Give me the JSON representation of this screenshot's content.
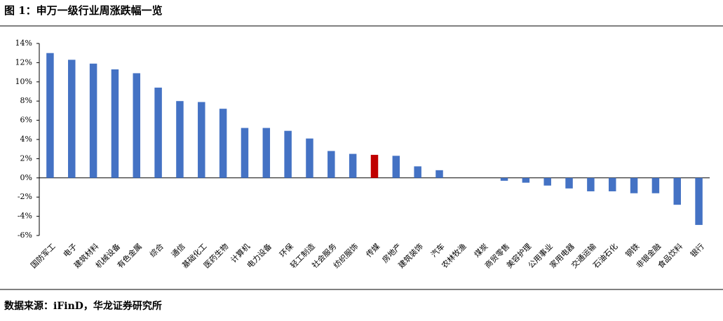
{
  "chart_data": {
    "type": "bar",
    "title": "图 1：申万一级行业周涨跌幅一览",
    "source": "数据来源：iFinD，华龙证券研究所",
    "categories": [
      "国防军工",
      "电子",
      "建筑材料",
      "机械设备",
      "有色金属",
      "综合",
      "通信",
      "基础化工",
      "医药生物",
      "计算机",
      "电力设备",
      "环保",
      "轻工制造",
      "社会服务",
      "纺织服饰",
      "传媒",
      "房地产",
      "建筑装饰",
      "汽车",
      "农林牧渔",
      "煤炭",
      "商贸零售",
      "美容护理",
      "公用事业",
      "家用电器",
      "交通运输",
      "石油石化",
      "钢铁",
      "非银金融",
      "食品饮料",
      "银行"
    ],
    "values": [
      13.0,
      12.3,
      11.9,
      11.3,
      10.9,
      9.4,
      8.0,
      7.9,
      7.2,
      5.2,
      5.2,
      4.9,
      4.1,
      2.8,
      2.5,
      2.4,
      2.3,
      1.2,
      0.8,
      0,
      0,
      -0.3,
      -0.5,
      -0.8,
      -1.1,
      -1.4,
      -1.4,
      -1.6,
      -1.6,
      -2.8,
      -4.9
    ],
    "colors": [
      "#4472c4",
      "#4472c4",
      "#4472c4",
      "#4472c4",
      "#4472c4",
      "#4472c4",
      "#4472c4",
      "#4472c4",
      "#4472c4",
      "#4472c4",
      "#4472c4",
      "#4472c4",
      "#4472c4",
      "#4472c4",
      "#4472c4",
      "#c00000",
      "#4472c4",
      "#4472c4",
      "#4472c4",
      "#4472c4",
      "#4472c4",
      "#4472c4",
      "#4472c4",
      "#4472c4",
      "#4472c4",
      "#4472c4",
      "#4472c4",
      "#4472c4",
      "#4472c4",
      "#4472c4",
      "#4472c4"
    ],
    "ylim": [
      -6,
      14
    ],
    "yticks": [
      {
        "value": -6,
        "label": "-6%"
      },
      {
        "value": -4,
        "label": "-4%"
      },
      {
        "value": -2,
        "label": "-2%"
      },
      {
        "value": 0,
        "label": "0%"
      },
      {
        "value": 2,
        "label": "2%"
      },
      {
        "value": 4,
        "label": "4%"
      },
      {
        "value": 6,
        "label": "6%"
      },
      {
        "value": 8,
        "label": "8%"
      },
      {
        "value": 10,
        "label": "10%"
      },
      {
        "value": 12,
        "label": "12%"
      },
      {
        "value": 14,
        "label": "14%"
      }
    ]
  }
}
